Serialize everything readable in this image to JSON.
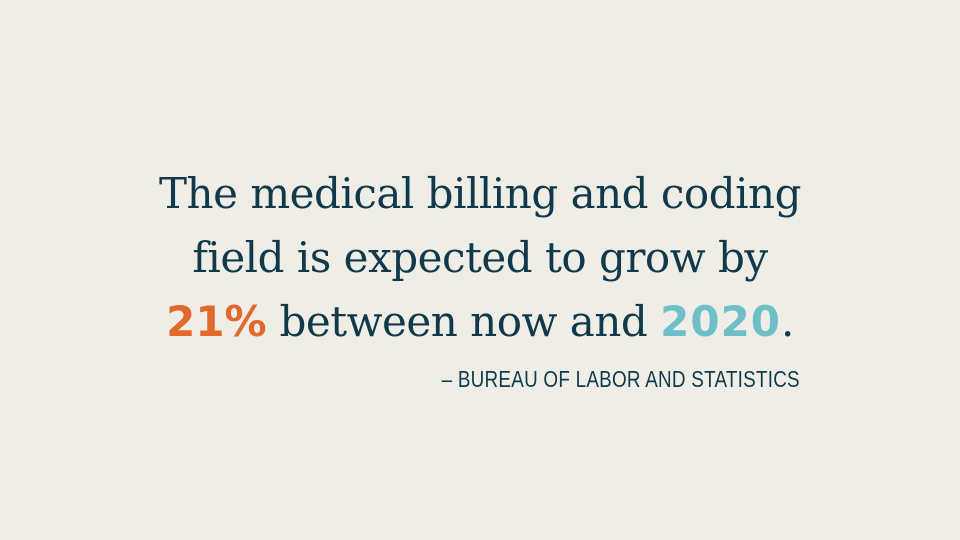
{
  "quote": {
    "line1": "The medical billing and coding",
    "line2": "field is expected to grow by",
    "line3": {
      "percent": "21%",
      "middle": " between now and ",
      "year": "2020",
      "end": "."
    }
  },
  "attribution": "– BUREAU OF LABOR AND STATISTICS",
  "colors": {
    "background": "#eeeee7",
    "text": "#12394a",
    "accent_orange": "#e2692b",
    "accent_teal": "#6fbfc9"
  }
}
